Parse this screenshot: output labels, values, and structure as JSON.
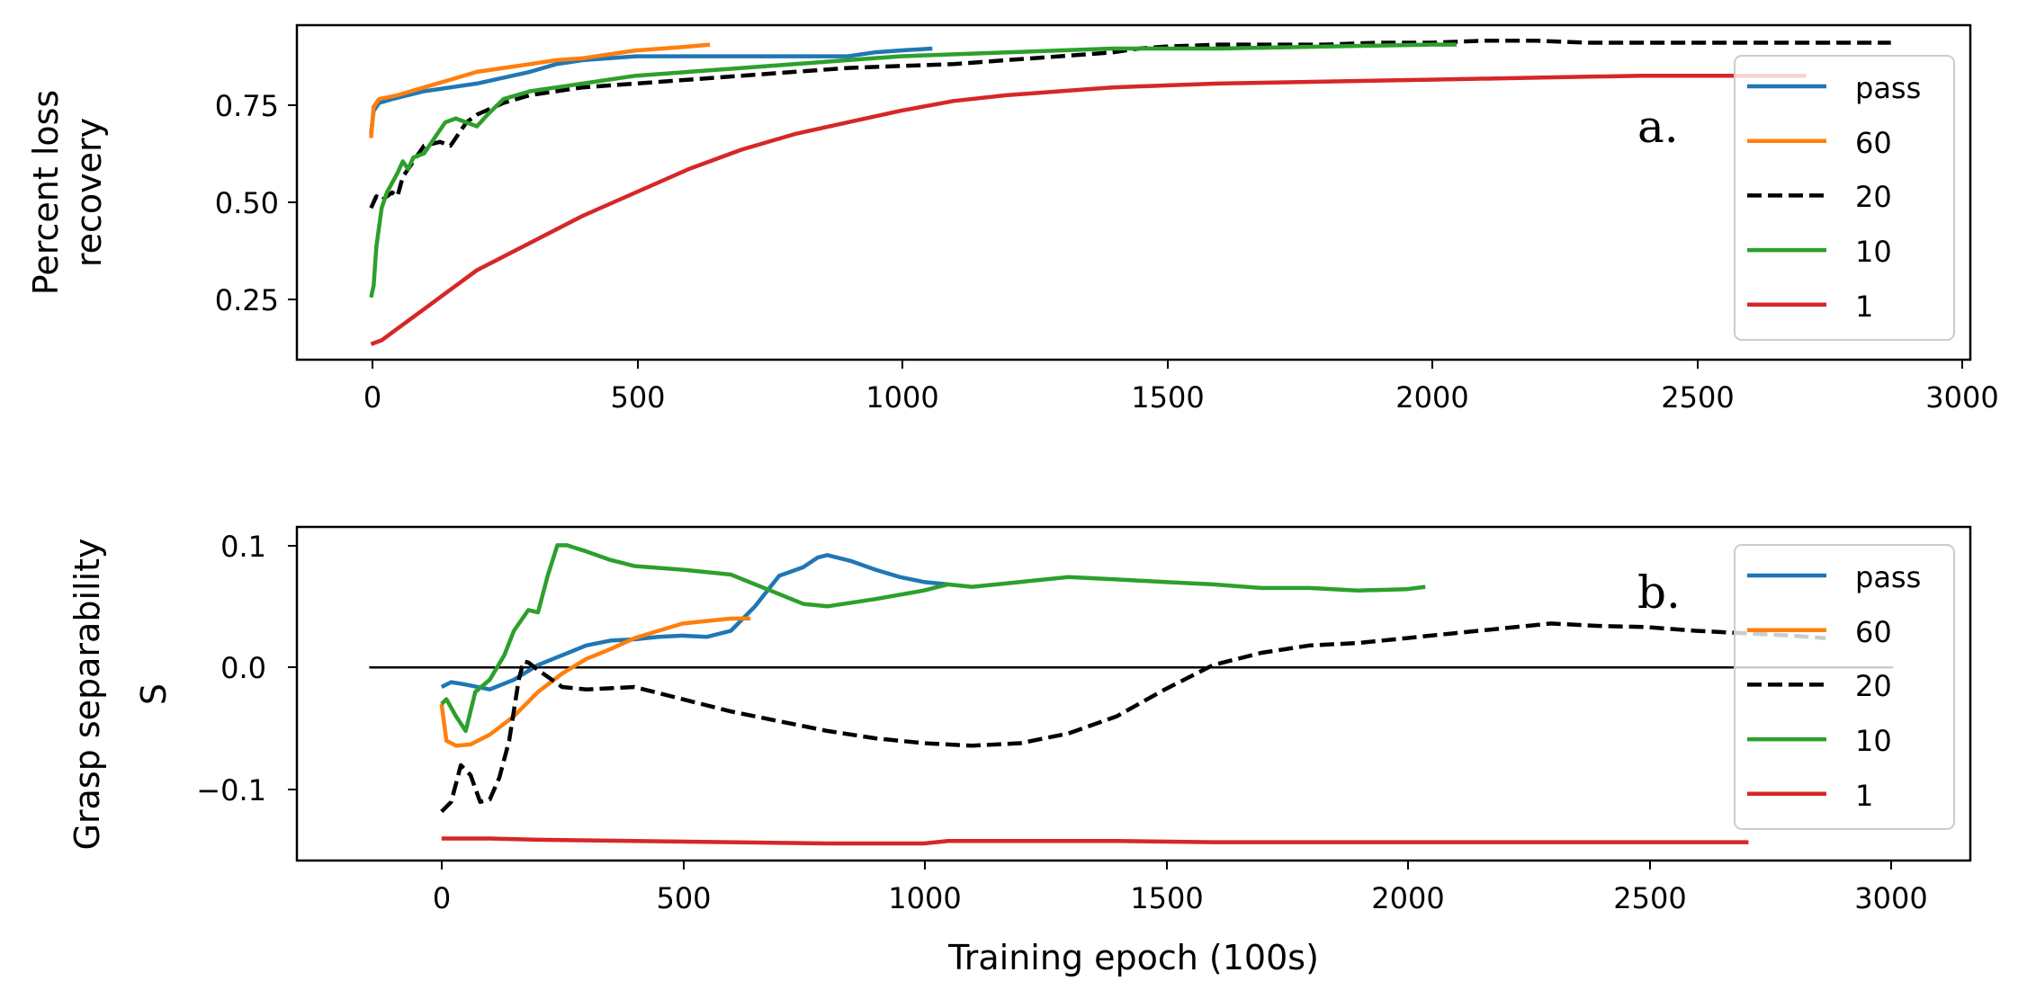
{
  "chart_data": [
    {
      "type": "line",
      "panel_label": "a.",
      "xlabel": "",
      "ylabel": [
        "Percent loss",
        "recovery"
      ],
      "xlim": [
        -140,
        3020
      ],
      "ylim": [
        0.09,
        0.95
      ],
      "xticks": [
        0,
        500,
        1000,
        1500,
        2000,
        2500,
        3000
      ],
      "yticks": [
        0.25,
        0.5,
        0.75
      ],
      "ytick_labels": [
        "0.25",
        "0.50",
        "0.75"
      ],
      "legend_position": "upper-right",
      "series": [
        {
          "name": "pass",
          "color": "#1f77b4",
          "dash": "solid",
          "x": [
            0,
            5,
            15,
            40,
            100,
            200,
            300,
            350,
            400,
            500,
            600,
            700,
            800,
            900,
            950,
            1000,
            1060
          ],
          "y": [
            0.67,
            0.73,
            0.75,
            0.76,
            0.78,
            0.8,
            0.83,
            0.85,
            0.86,
            0.87,
            0.87,
            0.87,
            0.87,
            0.87,
            0.88,
            0.885,
            0.89
          ]
        },
        {
          "name": "60",
          "color": "#ff7f0e",
          "dash": "solid",
          "x": [
            0,
            5,
            15,
            50,
            100,
            150,
            200,
            250,
            300,
            350,
            400,
            450,
            500,
            550,
            600,
            640
          ],
          "y": [
            0.66,
            0.74,
            0.76,
            0.77,
            0.79,
            0.81,
            0.83,
            0.84,
            0.85,
            0.86,
            0.865,
            0.875,
            0.885,
            0.89,
            0.895,
            0.9
          ],
          "legend_label": "60"
        },
        {
          "name": "20",
          "color": "#000000",
          "dash": "dashed",
          "x": [
            0,
            10,
            20,
            40,
            50,
            60,
            80,
            100,
            130,
            150,
            180,
            200,
            250,
            300,
            350,
            400,
            500,
            600,
            700,
            800,
            900,
            1000,
            1100,
            1200,
            1300,
            1400,
            1450,
            1500,
            1600,
            1700,
            1800,
            1900,
            2000,
            2100,
            2200,
            2300,
            2400,
            2500,
            2600,
            2700,
            2800,
            2870
          ],
          "y": [
            0.48,
            0.51,
            0.5,
            0.52,
            0.51,
            0.56,
            0.6,
            0.64,
            0.65,
            0.64,
            0.7,
            0.72,
            0.75,
            0.77,
            0.78,
            0.79,
            0.8,
            0.81,
            0.82,
            0.83,
            0.84,
            0.845,
            0.85,
            0.86,
            0.87,
            0.88,
            0.89,
            0.895,
            0.9,
            0.9,
            0.9,
            0.905,
            0.905,
            0.91,
            0.91,
            0.905,
            0.905,
            0.905,
            0.905,
            0.905,
            0.905,
            0.905
          ]
        },
        {
          "name": "10",
          "color": "#2ca02c",
          "dash": "solid",
          "x": [
            0,
            5,
            10,
            20,
            30,
            50,
            60,
            70,
            80,
            100,
            120,
            140,
            160,
            180,
            200,
            220,
            250,
            300,
            400,
            500,
            600,
            700,
            800,
            900,
            1000,
            1200,
            1400,
            1600,
            1800,
            2000,
            2050
          ],
          "y": [
            0.25,
            0.28,
            0.38,
            0.48,
            0.52,
            0.57,
            0.6,
            0.58,
            0.61,
            0.62,
            0.66,
            0.7,
            0.71,
            0.7,
            0.69,
            0.72,
            0.76,
            0.78,
            0.8,
            0.82,
            0.83,
            0.84,
            0.85,
            0.86,
            0.87,
            0.88,
            0.89,
            0.89,
            0.895,
            0.9,
            0.9
          ]
        },
        {
          "name": "1",
          "color": "#d62728",
          "dash": "solid",
          "x": [
            0,
            20,
            50,
            100,
            150,
            200,
            300,
            400,
            500,
            600,
            700,
            800,
            900,
            1000,
            1100,
            1200,
            1300,
            1400,
            1500,
            1600,
            1800,
            2000,
            2200,
            2400,
            2600,
            2710
          ],
          "y": [
            0.13,
            0.14,
            0.17,
            0.22,
            0.27,
            0.32,
            0.39,
            0.46,
            0.52,
            0.58,
            0.63,
            0.67,
            0.7,
            0.73,
            0.755,
            0.77,
            0.78,
            0.79,
            0.795,
            0.8,
            0.805,
            0.81,
            0.815,
            0.82,
            0.82,
            0.82
          ]
        }
      ]
    },
    {
      "type": "line",
      "panel_label": "b.",
      "xlabel": "Training epoch (100s)",
      "ylabel": [
        "Grasp separability",
        "S"
      ],
      "xlim": [
        -300,
        3170
      ],
      "ylim": [
        -0.158,
        0.115
      ],
      "xticks": [
        0,
        500,
        1000,
        1500,
        2000,
        2500,
        3000
      ],
      "yticks": [
        0.1,
        0.0,
        -0.1
      ],
      "ytick_labels": [
        "0.1",
        "0.0",
        "−0.1"
      ],
      "legend_position": "upper-right",
      "reference_line": {
        "y": 0,
        "x_from": -150,
        "x_to": 3010,
        "color": "#000000"
      },
      "series": [
        {
          "name": "pass",
          "color": "#1f77b4",
          "dash": "solid",
          "x": [
            0,
            20,
            50,
            100,
            150,
            200,
            250,
            300,
            350,
            400,
            450,
            500,
            550,
            600,
            650,
            700,
            750,
            780,
            800,
            850,
            900,
            950,
            1000,
            1050
          ],
          "y": [
            -0.016,
            -0.012,
            -0.014,
            -0.018,
            -0.01,
            0.002,
            0.01,
            0.018,
            0.022,
            0.023,
            0.025,
            0.026,
            0.025,
            0.03,
            0.05,
            0.075,
            0.082,
            0.09,
            0.092,
            0.087,
            0.08,
            0.074,
            0.07,
            0.068
          ]
        },
        {
          "name": "60",
          "color": "#ff7f0e",
          "dash": "solid",
          "x": [
            0,
            10,
            30,
            60,
            100,
            150,
            200,
            250,
            300,
            350,
            400,
            450,
            500,
            550,
            600,
            640
          ],
          "y": [
            -0.03,
            -0.06,
            -0.064,
            -0.063,
            -0.055,
            -0.04,
            -0.02,
            -0.005,
            0.007,
            0.015,
            0.024,
            0.03,
            0.036,
            0.038,
            0.04,
            0.04
          ]
        },
        {
          "name": "20",
          "color": "#000000",
          "dash": "dashed",
          "x": [
            0,
            20,
            40,
            60,
            80,
            100,
            120,
            140,
            160,
            170,
            180,
            200,
            250,
            300,
            350,
            400,
            500,
            600,
            700,
            800,
            900,
            1000,
            1100,
            1200,
            1300,
            1400,
            1500,
            1600,
            1700,
            1800,
            1900,
            2000,
            2100,
            2200,
            2300,
            2400,
            2500,
            2600,
            2700,
            2800,
            2870
          ],
          "y": [
            -0.118,
            -0.11,
            -0.08,
            -0.088,
            -0.11,
            -0.108,
            -0.09,
            -0.06,
            -0.01,
            0.005,
            0.004,
            -0.002,
            -0.016,
            -0.018,
            -0.017,
            -0.016,
            -0.026,
            -0.036,
            -0.044,
            -0.052,
            -0.058,
            -0.062,
            -0.064,
            -0.062,
            -0.054,
            -0.04,
            -0.018,
            0.002,
            0.012,
            0.018,
            0.02,
            0.024,
            0.028,
            0.032,
            0.036,
            0.034,
            0.033,
            0.03,
            0.028,
            0.026,
            0.024
          ]
        },
        {
          "name": "10",
          "color": "#2ca02c",
          "dash": "solid",
          "x": [
            0,
            10,
            30,
            50,
            70,
            100,
            130,
            150,
            180,
            200,
            220,
            240,
            260,
            300,
            350,
            400,
            500,
            600,
            700,
            750,
            800,
            900,
            1000,
            1050,
            1100,
            1200,
            1300,
            1400,
            1500,
            1600,
            1700,
            1800,
            1900,
            2000,
            2040
          ],
          "y": [
            -0.03,
            -0.026,
            -0.04,
            -0.052,
            -0.02,
            -0.01,
            0.01,
            0.03,
            0.047,
            0.045,
            0.075,
            0.1,
            0.1,
            0.095,
            0.088,
            0.083,
            0.08,
            0.076,
            0.06,
            0.052,
            0.05,
            0.056,
            0.063,
            0.068,
            0.066,
            0.07,
            0.074,
            0.072,
            0.07,
            0.068,
            0.065,
            0.065,
            0.063,
            0.064,
            0.066
          ]
        },
        {
          "name": "1",
          "color": "#d62728",
          "dash": "solid",
          "x": [
            0,
            100,
            200,
            400,
            600,
            800,
            1000,
            1050,
            1200,
            1400,
            1600,
            2000,
            2400,
            2710
          ],
          "y": [
            -0.14,
            -0.14,
            -0.141,
            -0.142,
            -0.143,
            -0.144,
            -0.144,
            -0.142,
            -0.142,
            -0.142,
            -0.143,
            -0.143,
            -0.143,
            -0.143
          ]
        }
      ]
    }
  ]
}
